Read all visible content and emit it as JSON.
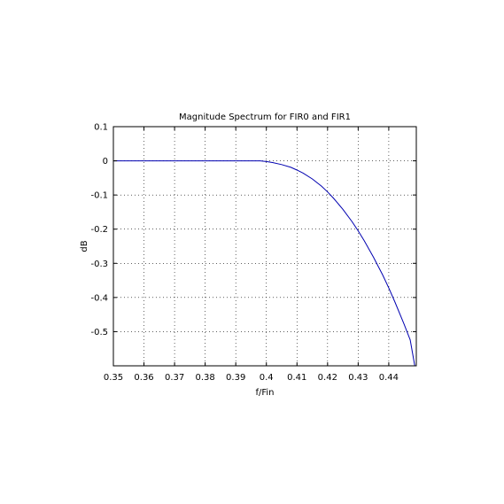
{
  "chart_data": {
    "type": "line",
    "title": "Magnitude Spectrum for FIR0 and FIR1",
    "xlabel": "f/Fin",
    "ylabel": "dB",
    "xlim": [
      0.35,
      0.449
    ],
    "ylim": [
      -0.6,
      0.1
    ],
    "xticks": [
      0.35,
      0.36,
      0.37,
      0.38,
      0.39,
      0.4,
      0.41,
      0.42,
      0.43,
      0.44
    ],
    "xtick_labels": [
      "0.35",
      "0.36",
      "0.37",
      "0.38",
      "0.39",
      "0.4",
      "0.41",
      "0.42",
      "0.43",
      "0.44"
    ],
    "yticks": [
      0.1,
      0,
      -0.1,
      -0.2,
      -0.3,
      -0.4,
      -0.5
    ],
    "ytick_labels": [
      "0.1",
      "0",
      "-0.1",
      "-0.2",
      "-0.3",
      "-0.4",
      "-0.5"
    ],
    "grid": true,
    "series": [
      {
        "color": "#0000b0",
        "x": [
          0.35,
          0.36,
          0.37,
          0.38,
          0.39,
          0.395,
          0.398,
          0.4,
          0.402,
          0.405,
          0.408,
          0.41,
          0.412,
          0.415,
          0.418,
          0.42,
          0.422,
          0.425,
          0.428,
          0.43,
          0.432,
          0.435,
          0.438,
          0.44,
          0.442,
          0.445,
          0.447,
          0.4485
        ],
        "y": [
          0,
          0,
          0,
          0,
          0,
          0,
          0,
          -0.002,
          -0.005,
          -0.011,
          -0.019,
          -0.027,
          -0.036,
          -0.053,
          -0.074,
          -0.091,
          -0.11,
          -0.142,
          -0.178,
          -0.205,
          -0.234,
          -0.282,
          -0.334,
          -0.372,
          -0.413,
          -0.478,
          -0.524,
          -0.6
        ]
      }
    ]
  }
}
